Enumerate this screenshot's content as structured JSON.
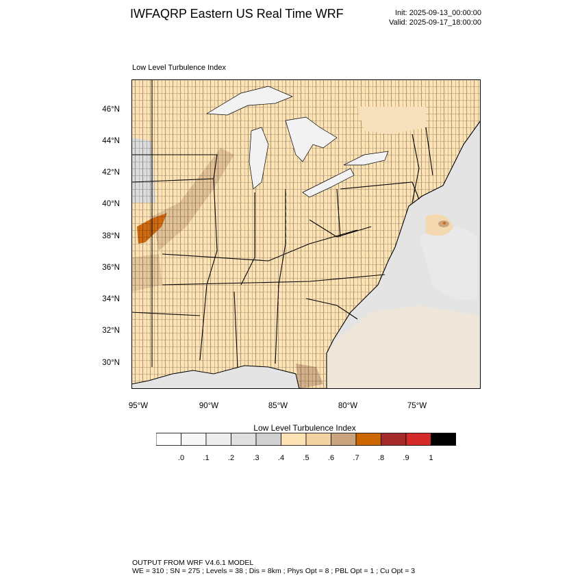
{
  "header": {
    "title": "IWFAQRP Eastern US Real Time WRF",
    "init": "Init: 2025-09-13_00:00:00",
    "valid": "Valid: 2025-09-17_18:00:00"
  },
  "map": {
    "subtitle": "Low Level Turbulence Index",
    "lat_labels": [
      "46°N",
      "44°N",
      "42°N",
      "40°N",
      "38°N",
      "36°N",
      "34°N",
      "32°N",
      "30°N"
    ],
    "lon_labels": [
      "95°W",
      "90°W",
      "85°W",
      "80°W",
      "75°W"
    ],
    "colors": {
      "ocean": "#e4e4e4",
      "lake": "#f2f2f2",
      "land_light": "#fde2b4",
      "land_mid": "#f6d3a0",
      "land_tan": "#c9a47f",
      "hotspot": "#d06a10",
      "lowland_gray": "#dcdcdc",
      "boundary": "#000000"
    }
  },
  "colorbar": {
    "title": "Low Level Turbulence Index",
    "colors": [
      "#ffffff",
      "#f7f7f7",
      "#ededed",
      "#e0e0e0",
      "#d0d0d0",
      "#fde2b4",
      "#f3d2a2",
      "#c9a47f",
      "#cc6600",
      "#a52a2a",
      "#d42a2a",
      "#000000"
    ],
    "ticks": [
      ".0",
      ".1",
      ".2",
      ".3",
      ".4",
      ".5",
      ".6",
      ".7",
      ".8",
      ".9",
      "1"
    ]
  },
  "footer": {
    "line1": "OUTPUT FROM WRF V4.6.1 MODEL",
    "line2": "WE = 310 ; SN = 275 ; Levels = 38 ; Dis = 8km ; Phys Opt = 8 ; PBL Opt = 1 ; Cu Opt = 3"
  }
}
